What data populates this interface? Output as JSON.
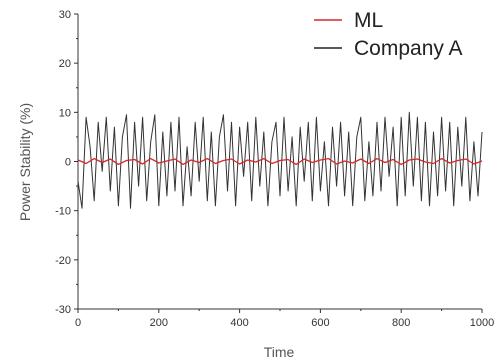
{
  "chart_data": {
    "type": "line",
    "xlabel": "Time",
    "ylabel": "Power Stability (%)",
    "xlim": [
      0,
      1000
    ],
    "ylim": [
      -30,
      30
    ],
    "xticks": [
      "0",
      "200",
      "400",
      "600",
      "800",
      "1000"
    ],
    "xtick_values": [
      0,
      200,
      400,
      600,
      800,
      1000
    ],
    "yticks": [
      "-30",
      "-20",
      "-10",
      "0",
      "10",
      "20",
      "30"
    ],
    "ytick_values": [
      -30,
      -20,
      -10,
      0,
      10,
      20,
      30
    ],
    "grid": false,
    "legend_position": "top-right",
    "series": [
      {
        "name": "ML",
        "color": "#d62728",
        "x": [
          0,
          20,
          40,
          60,
          80,
          100,
          120,
          140,
          160,
          180,
          200,
          220,
          240,
          260,
          280,
          300,
          320,
          340,
          360,
          380,
          400,
          420,
          440,
          460,
          480,
          500,
          520,
          540,
          560,
          580,
          600,
          620,
          640,
          660,
          680,
          700,
          720,
          740,
          760,
          780,
          800,
          820,
          840,
          860,
          880,
          900,
          920,
          940,
          960,
          980,
          1000
        ],
        "values": [
          0.3,
          -0.4,
          0.6,
          -0.2,
          0.5,
          -0.6,
          0.2,
          0.4,
          -0.5,
          0.6,
          -0.3,
          0.1,
          0.5,
          -0.6,
          0.3,
          -0.2,
          0.6,
          -0.4,
          0.2,
          0.5,
          -0.5,
          0.3,
          -0.1,
          0.6,
          -0.4,
          0.2,
          0.4,
          -0.6,
          0.5,
          -0.2,
          0.3,
          0.6,
          -0.5,
          0.1,
          -0.3,
          0.5,
          -0.4,
          0.6,
          -0.2,
          0.4,
          -0.6,
          0.3,
          0.5,
          -0.1,
          -0.4,
          0.6,
          -0.3,
          0.2,
          0.5,
          -0.5,
          0.1
        ]
      },
      {
        "name": "Company A",
        "color": "#333333",
        "x": [
          0,
          10,
          20,
          30,
          40,
          50,
          60,
          70,
          80,
          90,
          100,
          110,
          120,
          130,
          140,
          150,
          160,
          170,
          180,
          190,
          200,
          210,
          220,
          230,
          240,
          250,
          260,
          270,
          280,
          290,
          300,
          310,
          320,
          330,
          340,
          350,
          360,
          370,
          380,
          390,
          400,
          410,
          420,
          430,
          440,
          450,
          460,
          470,
          480,
          490,
          500,
          510,
          520,
          530,
          540,
          550,
          560,
          570,
          580,
          590,
          600,
          610,
          620,
          630,
          640,
          650,
          660,
          670,
          680,
          690,
          700,
          710,
          720,
          730,
          740,
          750,
          760,
          770,
          780,
          790,
          800,
          810,
          820,
          830,
          840,
          850,
          860,
          870,
          880,
          890,
          900,
          910,
          920,
          930,
          940,
          950,
          960,
          970,
          980,
          990,
          1000
        ],
        "values": [
          -4,
          -9.5,
          9,
          3,
          -8,
          8,
          -2,
          9,
          -6,
          7,
          -9,
          5,
          9.5,
          -9.5,
          8,
          -5,
          9,
          -8,
          4,
          9.5,
          -9,
          6,
          -7,
          8,
          -6,
          9,
          -9,
          3,
          -7,
          8,
          -4,
          9,
          -8,
          6,
          -9,
          5,
          9.5,
          -6,
          8,
          -9,
          7,
          -3,
          8,
          -8,
          9,
          -5,
          6,
          -9,
          4,
          8,
          -7,
          9,
          -6,
          5,
          -9,
          7,
          -4,
          8,
          -8,
          9,
          -6,
          4,
          -9,
          7,
          -5,
          8,
          -7,
          6,
          -9,
          5,
          9,
          -8,
          4,
          -7,
          8,
          -6,
          9,
          -3,
          7,
          -9,
          9,
          -7,
          10,
          -5,
          9,
          -8,
          8,
          -9,
          6,
          -7,
          9,
          -6,
          8,
          -9,
          7,
          -5,
          9,
          -8,
          4,
          -7,
          6
        ]
      }
    ]
  }
}
